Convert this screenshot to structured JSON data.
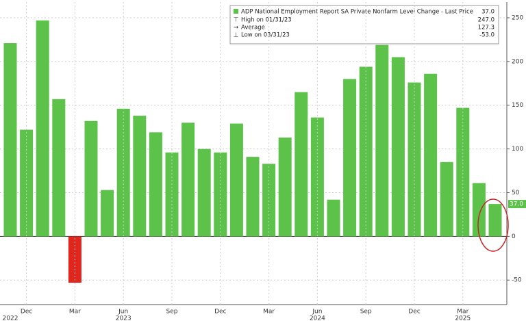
{
  "chart_data": {
    "type": "bar",
    "legend": {
      "title": "ADP National Employment Report SA Private Nonfarm Level Change - Last Price",
      "last": "37.0",
      "stats": [
        {
          "label": "High on 01/31/23",
          "value_label": "247.0"
        },
        {
          "label": "Average",
          "value_label": "127.3"
        },
        {
          "label": "Low on 03/31/23",
          "value_label": "-53.0"
        }
      ]
    },
    "categories": [
      null,
      "Dec",
      null,
      null,
      "Mar",
      null,
      null,
      "Jun",
      null,
      null,
      "Sep",
      null,
      null,
      "Dec",
      null,
      null,
      "Mar",
      null,
      null,
      "Jun",
      null,
      null,
      "Sep",
      null,
      null,
      "Dec",
      null,
      null,
      "Mar",
      null,
      null
    ],
    "year_labels": [
      {
        "index": 0,
        "label": "2022"
      },
      {
        "index": 7,
        "label": "2023"
      },
      {
        "index": 19,
        "label": "2024"
      },
      {
        "index": 28,
        "label": "2025"
      }
    ],
    "values": [
      221,
      122,
      247,
      157,
      -53,
      132,
      53,
      146,
      138,
      119,
      96,
      130,
      100,
      96,
      129,
      91,
      83,
      113,
      165,
      136,
      42,
      180,
      194,
      219,
      205,
      176,
      186,
      85,
      147,
      61,
      37
    ],
    "last_value_label": "37.0",
    "color": "#5cc24a",
    "negative_color": "#e0261d",
    "ylim": [
      -78,
      268
    ],
    "yticks": [
      -50,
      0,
      50,
      100,
      150,
      200,
      250
    ],
    "grid": true
  }
}
